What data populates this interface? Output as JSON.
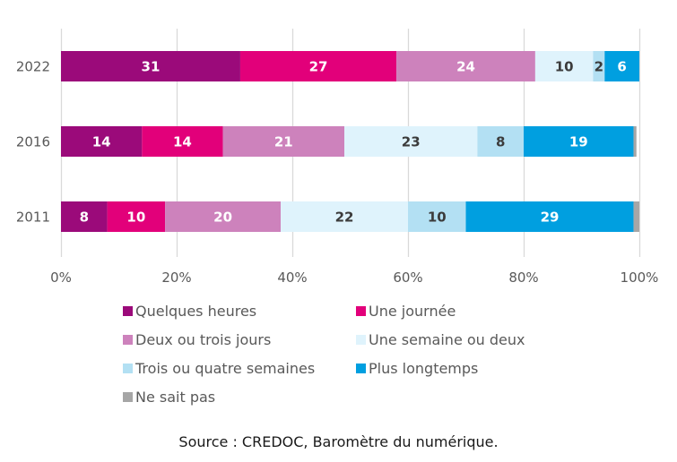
{
  "chart_data": {
    "type": "bar",
    "orientation": "horizontal",
    "stacked": "percent",
    "title": "",
    "xlabel": "",
    "ylabel": "",
    "xlim": [
      0,
      100
    ],
    "x_ticks": [
      "0%",
      "20%",
      "40%",
      "60%",
      "80%",
      "100%"
    ],
    "grid": true,
    "legend_position": "bottom",
    "categories": [
      "2022",
      "2016",
      "2011"
    ],
    "series": [
      {
        "name": "Quelques heures",
        "color": "#9B0A7A",
        "label_color": "#ffffff",
        "values": [
          31,
          14,
          8
        ]
      },
      {
        "name": "Une journée",
        "color": "#E2007A",
        "label_color": "#ffffff",
        "values": [
          27,
          14,
          10
        ]
      },
      {
        "name": "Deux ou trois jours",
        "color": "#CD82BC",
        "label_color": "#ffffff",
        "values": [
          24,
          21,
          20
        ]
      },
      {
        "name": "Une semaine ou deux",
        "color": "#DFF3FC",
        "label_color": "#3b3b3b",
        "values": [
          10,
          23,
          22
        ]
      },
      {
        "name": "Trois ou quatre semaines",
        "color": "#B3E0F3",
        "label_color": "#3b3b3b",
        "values": [
          2,
          8,
          10
        ]
      },
      {
        "name": "Plus longtemps",
        "color": "#009FE0",
        "label_color": "#ffffff",
        "values": [
          6,
          19,
          29
        ]
      },
      {
        "name": "Ne sait pas",
        "color": "#A6A6A6",
        "label_color": "#3b3b3b",
        "values": [
          0,
          0.5,
          1
        ]
      }
    ],
    "data_labels": [
      [
        "31",
        "27",
        "24",
        "10",
        "2",
        "6",
        ""
      ],
      [
        "14",
        "14",
        "21",
        "23",
        "8",
        "19",
        ""
      ],
      [
        "8",
        "10",
        "20",
        "22",
        "10",
        "29",
        ""
      ]
    ],
    "source": "Source : CREDOC, Baromètre du numérique."
  }
}
